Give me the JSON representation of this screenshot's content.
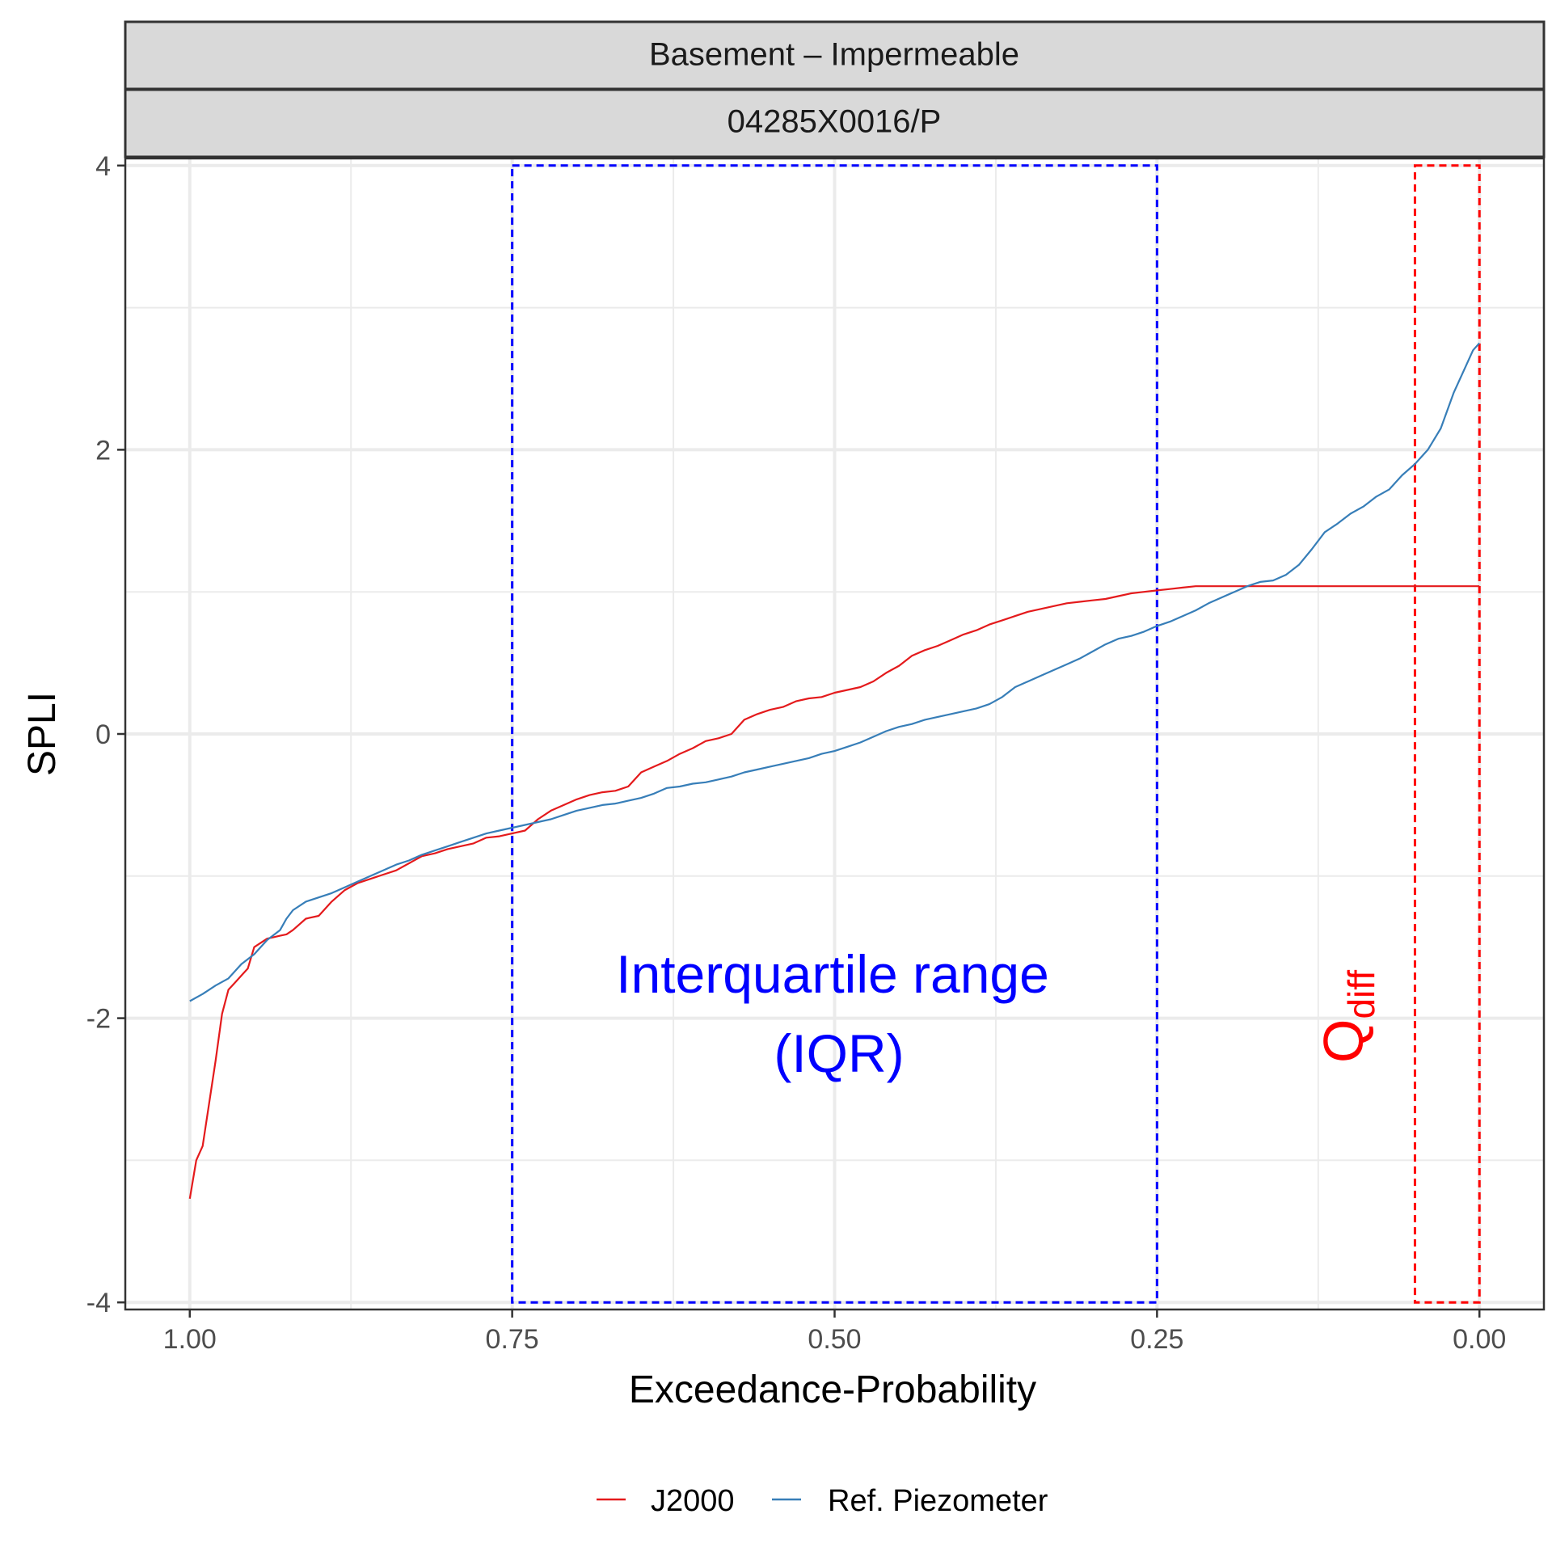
{
  "chart_data": {
    "type": "line",
    "strips": [
      "Basement – Impermeable",
      "04285X0016/P"
    ],
    "xlabel": "Exceedance-Probability",
    "ylabel": "SPLI",
    "xlim": [
      1.05,
      -0.05
    ],
    "x_reversed": true,
    "ylim": [
      -4.05,
      4.05
    ],
    "x_ticks": [
      1.0,
      0.75,
      0.5,
      0.25,
      0.0
    ],
    "x_tick_labels": [
      "1.00",
      "0.75",
      "0.50",
      "0.25",
      "0.00"
    ],
    "y_ticks": [
      -4,
      -2,
      0,
      2,
      4
    ],
    "y_tick_labels": [
      "-4",
      "-2",
      "0",
      "2",
      "4"
    ],
    "grid": true,
    "legend_position": "bottom",
    "series": [
      {
        "name": "J2000",
        "color": "#e41a1c",
        "x": [
          1.0,
          0.995,
          0.99,
          0.985,
          0.98,
          0.975,
          0.97,
          0.965,
          0.96,
          0.955,
          0.95,
          0.945,
          0.94,
          0.935,
          0.93,
          0.925,
          0.92,
          0.91,
          0.9,
          0.89,
          0.88,
          0.87,
          0.86,
          0.85,
          0.84,
          0.83,
          0.82,
          0.81,
          0.8,
          0.79,
          0.78,
          0.77,
          0.76,
          0.75,
          0.74,
          0.73,
          0.72,
          0.71,
          0.7,
          0.69,
          0.68,
          0.67,
          0.66,
          0.65,
          0.64,
          0.63,
          0.62,
          0.61,
          0.6,
          0.59,
          0.58,
          0.57,
          0.56,
          0.55,
          0.54,
          0.53,
          0.52,
          0.51,
          0.5,
          0.49,
          0.48,
          0.47,
          0.46,
          0.45,
          0.44,
          0.43,
          0.42,
          0.41,
          0.4,
          0.39,
          0.38,
          0.37,
          0.36,
          0.35,
          0.34,
          0.33,
          0.32,
          0.31,
          0.3,
          0.29,
          0.28,
          0.27,
          0.26,
          0.25,
          0.24,
          0.23,
          0.22,
          0.21,
          0.2,
          0.19,
          0.18,
          0.17,
          0.16,
          0.15,
          0.1,
          0.05,
          0.0
        ],
        "y": [
          -3.27,
          -3.0,
          -2.9,
          -2.6,
          -2.3,
          -1.97,
          -1.8,
          -1.75,
          -1.7,
          -1.65,
          -1.5,
          -1.47,
          -1.44,
          -1.43,
          -1.42,
          -1.41,
          -1.38,
          -1.3,
          -1.28,
          -1.18,
          -1.1,
          -1.05,
          -1.02,
          -0.99,
          -0.96,
          -0.91,
          -0.86,
          -0.84,
          -0.81,
          -0.79,
          -0.77,
          -0.73,
          -0.72,
          -0.7,
          -0.68,
          -0.6,
          -0.54,
          -0.5,
          -0.46,
          -0.43,
          -0.41,
          -0.4,
          -0.37,
          -0.27,
          -0.23,
          -0.19,
          -0.14,
          -0.1,
          -0.05,
          -0.03,
          0.0,
          0.1,
          0.14,
          0.17,
          0.19,
          0.23,
          0.25,
          0.26,
          0.29,
          0.31,
          0.33,
          0.37,
          0.43,
          0.48,
          0.55,
          0.59,
          0.62,
          0.66,
          0.7,
          0.73,
          0.77,
          0.8,
          0.83,
          0.86,
          0.88,
          0.9,
          0.92,
          0.93,
          0.94,
          0.95,
          0.97,
          0.99,
          1.0,
          1.01,
          1.02,
          1.03,
          1.04,
          1.04,
          1.04,
          1.04,
          1.04,
          1.04,
          1.04,
          1.04,
          1.04,
          1.04,
          1.04
        ]
      },
      {
        "name": "Ref. Piezometer",
        "color": "#377eb8",
        "x": [
          1.0,
          0.99,
          0.98,
          0.97,
          0.96,
          0.95,
          0.94,
          0.93,
          0.925,
          0.92,
          0.91,
          0.9,
          0.89,
          0.88,
          0.87,
          0.86,
          0.85,
          0.84,
          0.83,
          0.82,
          0.81,
          0.8,
          0.79,
          0.78,
          0.77,
          0.76,
          0.75,
          0.74,
          0.73,
          0.72,
          0.71,
          0.7,
          0.69,
          0.68,
          0.67,
          0.66,
          0.65,
          0.64,
          0.63,
          0.62,
          0.61,
          0.6,
          0.59,
          0.58,
          0.57,
          0.56,
          0.55,
          0.54,
          0.53,
          0.52,
          0.51,
          0.5,
          0.49,
          0.48,
          0.47,
          0.46,
          0.45,
          0.44,
          0.43,
          0.42,
          0.41,
          0.4,
          0.39,
          0.38,
          0.37,
          0.36,
          0.35,
          0.34,
          0.33,
          0.32,
          0.31,
          0.3,
          0.29,
          0.28,
          0.27,
          0.26,
          0.25,
          0.24,
          0.23,
          0.22,
          0.21,
          0.2,
          0.19,
          0.18,
          0.17,
          0.16,
          0.15,
          0.14,
          0.13,
          0.12,
          0.11,
          0.1,
          0.09,
          0.08,
          0.07,
          0.06,
          0.05,
          0.04,
          0.03,
          0.02,
          0.01,
          0.005,
          0.0
        ],
        "y": [
          -1.88,
          -1.83,
          -1.77,
          -1.72,
          -1.62,
          -1.55,
          -1.45,
          -1.38,
          -1.3,
          -1.24,
          -1.18,
          -1.15,
          -1.12,
          -1.08,
          -1.04,
          -1.0,
          -0.96,
          -0.92,
          -0.89,
          -0.85,
          -0.82,
          -0.79,
          -0.76,
          -0.73,
          -0.7,
          -0.68,
          -0.66,
          -0.64,
          -0.62,
          -0.6,
          -0.57,
          -0.54,
          -0.52,
          -0.5,
          -0.49,
          -0.47,
          -0.45,
          -0.42,
          -0.38,
          -0.37,
          -0.35,
          -0.34,
          -0.32,
          -0.3,
          -0.27,
          -0.25,
          -0.23,
          -0.21,
          -0.19,
          -0.17,
          -0.14,
          -0.12,
          -0.09,
          -0.06,
          -0.02,
          0.02,
          0.05,
          0.07,
          0.1,
          0.12,
          0.14,
          0.16,
          0.18,
          0.21,
          0.26,
          0.33,
          0.37,
          0.41,
          0.45,
          0.49,
          0.53,
          0.58,
          0.63,
          0.67,
          0.69,
          0.72,
          0.76,
          0.79,
          0.83,
          0.87,
          0.92,
          0.96,
          1.0,
          1.04,
          1.07,
          1.08,
          1.12,
          1.19,
          1.3,
          1.42,
          1.48,
          1.55,
          1.6,
          1.67,
          1.72,
          1.82,
          1.9,
          2.0,
          2.15,
          2.4,
          2.6,
          2.7,
          2.75
        ]
      }
    ],
    "annotations": {
      "iqr_label_line1": "Interquartile range",
      "iqr_label_line2": "(IQR)",
      "iqr_x_range": [
        0.75,
        0.25
      ],
      "iqr_color": "#0000ff",
      "qdiff_label": "Q",
      "qdiff_subscript": "diff",
      "qdiff_x_range": [
        0.05,
        0.0
      ],
      "qdiff_color": "#ff0000",
      "box_y_range": [
        -4,
        4
      ]
    }
  }
}
